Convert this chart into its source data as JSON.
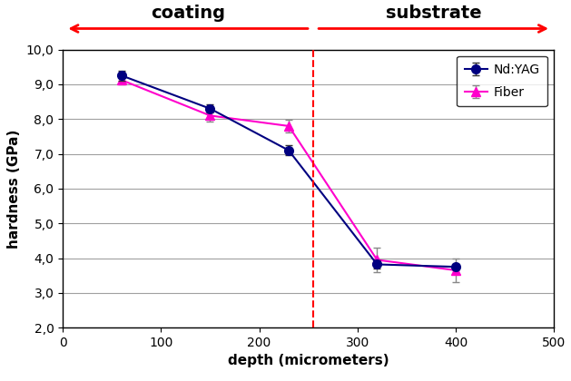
{
  "nd_yag_x": [
    60,
    150,
    230,
    320,
    400
  ],
  "nd_yag_y": [
    9.25,
    8.3,
    7.1,
    3.82,
    3.75
  ],
  "nd_yag_yerr": [
    0.15,
    0.12,
    0.15,
    0.12,
    0.08
  ],
  "fiber_x": [
    60,
    150,
    230,
    320,
    400
  ],
  "fiber_y": [
    9.12,
    8.1,
    7.8,
    3.95,
    3.65
  ],
  "fiber_yerr": [
    0.12,
    0.18,
    0.18,
    0.35,
    0.35
  ],
  "nd_yag_color": "#000080",
  "fiber_color": "#FF00CC",
  "xlabel": "depth (micrometers)",
  "ylabel": "hardness (GPa)",
  "xlim": [
    0,
    500
  ],
  "ylim": [
    2.0,
    10.0
  ],
  "yticks": [
    2.0,
    3.0,
    4.0,
    5.0,
    6.0,
    7.0,
    8.0,
    9.0,
    10.0
  ],
  "xticks": [
    0,
    100,
    200,
    300,
    400,
    500
  ],
  "vline_x": 255,
  "coating_label": "coating",
  "substrate_label": "substrate",
  "nd_yag_label": "Nd:YAG",
  "fiber_label": "Fiber",
  "bg_color": "#f0f0f0",
  "grid_color": "#a0a0a0"
}
